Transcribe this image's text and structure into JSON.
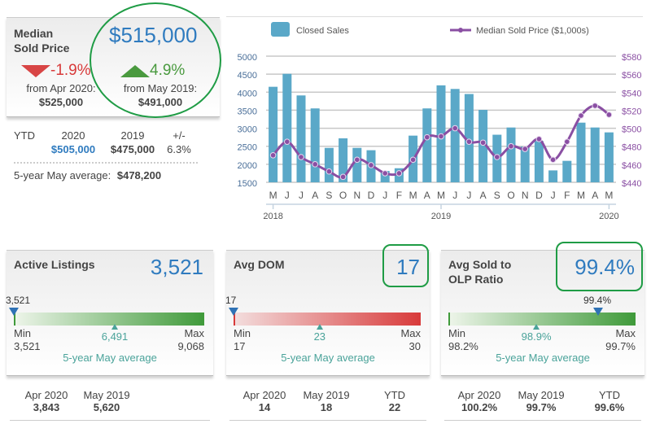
{
  "median_sold_price": {
    "title_line1": "Median",
    "title_line2": "Sold Price",
    "value": "$515,000",
    "change_month": {
      "pct": "-1.9%",
      "label": "from Apr 2020:",
      "value": "$525,000",
      "direction": "down",
      "color": "#d83a3a"
    },
    "change_year": {
      "pct": "4.9%",
      "label": "from May 2019:",
      "value": "$491,000",
      "direction": "up",
      "color": "#4a9a3f"
    },
    "ytd": {
      "label": "YTD",
      "col1_header": "2020",
      "col1_value": "$505,000",
      "col2_header": "2019",
      "col2_value": "$475,000",
      "col3_header": "+/-",
      "col3_value": "6.3%"
    },
    "five_year_label": "5-year May average:",
    "five_year_value": "$478,200"
  },
  "chart_data": {
    "type": "bar+line",
    "categories": [
      "M",
      "J",
      "J",
      "A",
      "S",
      "O",
      "N",
      "D",
      "J",
      "F",
      "M",
      "A",
      "M",
      "J",
      "J",
      "A",
      "S",
      "O",
      "N",
      "D",
      "J",
      "F",
      "M",
      "A",
      "M"
    ],
    "year_labels": [
      "2018",
      "2019",
      "2020"
    ],
    "legend": {
      "bar": "Closed Sales",
      "line": "Median Sold Price ($1,000s)",
      "placement": "top"
    },
    "series": [
      {
        "name": "Closed Sales",
        "type": "bar",
        "axis": "left",
        "color": "#5aa8c8",
        "values": [
          4150,
          4510,
          3910,
          3550,
          2455,
          2720,
          2455,
          2390,
          1815,
          1890,
          2795,
          3550,
          4190,
          4090,
          3950,
          3510,
          2820,
          3020,
          2490,
          2645,
          1830,
          2095,
          3155,
          3020,
          2885
        ]
      },
      {
        "name": "Median Sold Price ($1,000s)",
        "type": "line",
        "axis": "right",
        "color": "#8a4fa3",
        "values": [
          470,
          485,
          468,
          460,
          452,
          446,
          465,
          459,
          450,
          450,
          465,
          490,
          491,
          500,
          485,
          484,
          468,
          480,
          477,
          488,
          465,
          485,
          514,
          525,
          515
        ]
      }
    ],
    "left_axis": {
      "ylim": [
        1500,
        5000
      ],
      "ticks": [
        "5000",
        "4500",
        "4000",
        "3500",
        "3000",
        "2500",
        "2000",
        "1500"
      ]
    },
    "right_axis": {
      "ylim": [
        440,
        580
      ],
      "ticks": [
        "$580",
        "$560",
        "$540",
        "$520",
        "$500",
        "$480",
        "$460",
        "$440"
      ]
    },
    "grid": true
  },
  "cards": [
    {
      "title": "Active Listings",
      "value": "3,521",
      "marker_label": "3,521",
      "marker_pct": 0,
      "avg_value": "6,491",
      "avg_pct": 0.53,
      "min_label": "Min",
      "min": "3,521",
      "max_label": "Max",
      "max": "9,068",
      "avg_label": "5-year May average",
      "color": "#3f9a3a",
      "footer": [
        {
          "label": "Apr 2020",
          "value": "3,843"
        },
        {
          "label": "May 2019",
          "value": "5,620"
        }
      ]
    },
    {
      "title": "Avg DOM",
      "value": "17",
      "marker_label": "17",
      "marker_pct": 0,
      "avg_value": "23",
      "avg_pct": 0.46,
      "min_label": "Min",
      "min": "17",
      "max_label": "Max",
      "max": "30",
      "avg_label": "5-year May average",
      "color": "#d83a3a",
      "footer": [
        {
          "label": "Apr 2020",
          "value": "14"
        },
        {
          "label": "May 2019",
          "value": "18"
        },
        {
          "label": "YTD",
          "value": "22"
        }
      ]
    },
    {
      "title": "Avg Sold to",
      "title2": "OLP Ratio",
      "value": "99.4%",
      "marker_label": "99.4%",
      "marker_pct": 0.8,
      "avg_value": "98.9%",
      "avg_pct": 0.47,
      "min_label": "Min",
      "min": "98.2%",
      "max_label": "Max",
      "max": "99.7%",
      "avg_label": "5-year May average",
      "color": "#3f9a3a",
      "footer": [
        {
          "label": "Apr 2020",
          "value": "100.2%"
        },
        {
          "label": "May 2019",
          "value": "99.7%"
        },
        {
          "label": "YTD",
          "value": "99.6%"
        }
      ]
    }
  ],
  "highlight_color": "#1f9c45"
}
